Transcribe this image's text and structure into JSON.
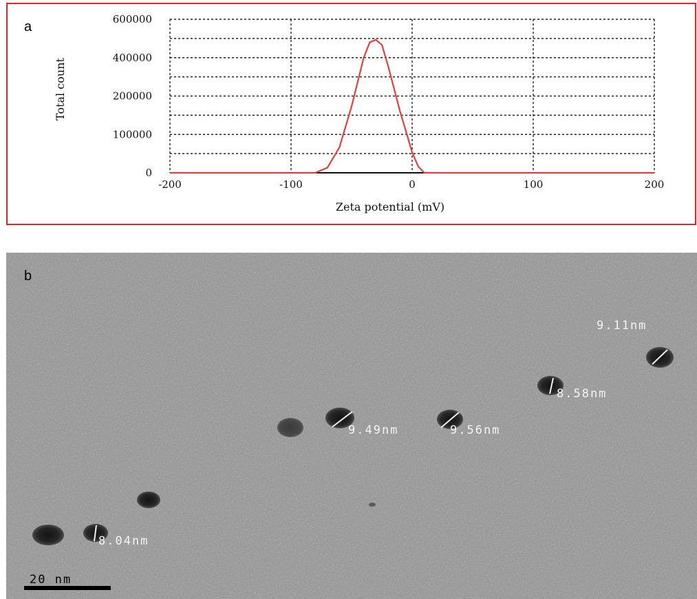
{
  "panels": {
    "a_letter": "a",
    "b_letter": "b"
  },
  "chart_data": {
    "type": "line",
    "title": "",
    "xlabel": "Zeta potential (mV)",
    "ylabel": "Total count",
    "xlim": [
      -200,
      200
    ],
    "ylim": [
      0,
      600000
    ],
    "x_ticks": [
      -200,
      -100,
      0,
      100,
      200
    ],
    "y_ticks": [
      0,
      100000,
      200000,
      400000,
      600000
    ],
    "grid": true,
    "series": [
      {
        "color": "#e0403f",
        "x": [
          -200,
          -100,
          -80,
          -70,
          -60,
          -50,
          -40,
          -35,
          -30,
          -25,
          -20,
          -10,
          0,
          5,
          10,
          50,
          100,
          200
        ],
        "y": [
          0,
          0,
          0,
          20000,
          100000,
          260000,
          450000,
          510000,
          520000,
          500000,
          420000,
          240000,
          80000,
          25000,
          0,
          0,
          0,
          0
        ]
      }
    ]
  },
  "tem_image": {
    "scale_bar_label": "20 nm",
    "particle_labels": [
      "9.11nm",
      "8.58nm",
      "9.49nm",
      "9.56nm",
      "8.04nm"
    ]
  }
}
